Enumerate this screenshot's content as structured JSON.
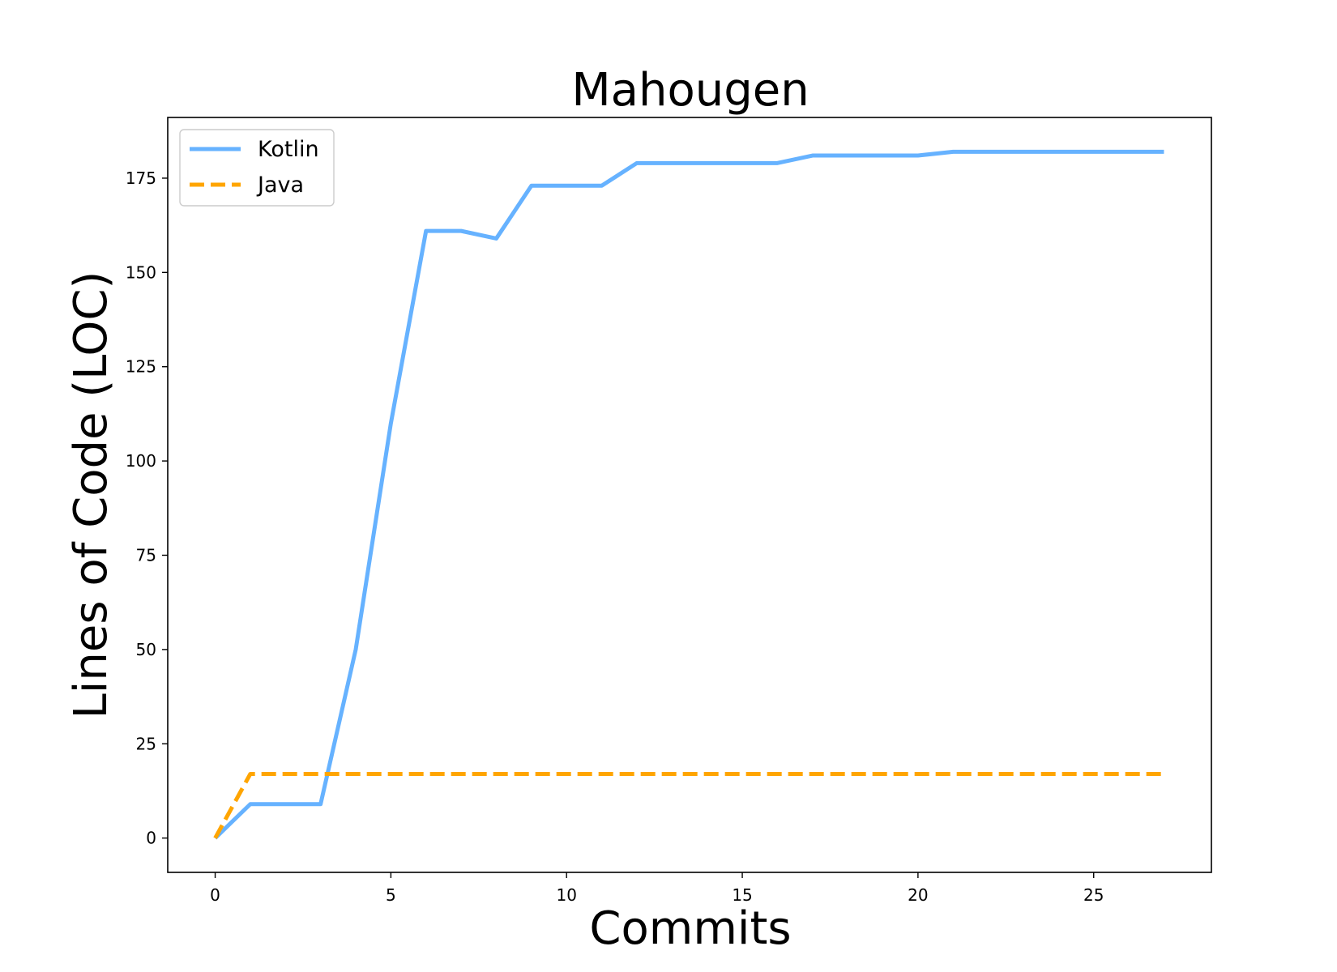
{
  "chart_data": {
    "type": "line",
    "title": "Mahougen",
    "xlabel": "Commits",
    "ylabel": "Lines of Code (LOC)",
    "xlim": [
      -1.35,
      28.35
    ],
    "ylim": [
      -9.1,
      191.1
    ],
    "xticks": [
      0,
      5,
      10,
      15,
      20,
      25
    ],
    "yticks": [
      0,
      25,
      50,
      75,
      100,
      125,
      150,
      175
    ],
    "grid": false,
    "legend_position": "top-left",
    "series": [
      {
        "name": "Kotlin",
        "color": "#66b2ff",
        "dash": "solid",
        "x": [
          0,
          1,
          2,
          3,
          4,
          5,
          6,
          7,
          8,
          9,
          10,
          11,
          12,
          13,
          14,
          15,
          16,
          17,
          18,
          19,
          20,
          21,
          22,
          23,
          24,
          25,
          26,
          27
        ],
        "values": [
          0,
          9,
          9,
          9,
          50,
          110,
          161,
          161,
          159,
          173,
          173,
          173,
          179,
          179,
          179,
          179,
          179,
          181,
          181,
          181,
          181,
          182,
          182,
          182,
          182,
          182,
          182,
          182
        ]
      },
      {
        "name": "Java",
        "color": "#ffa500",
        "dash": "dashed",
        "x": [
          0,
          1,
          2,
          3,
          4,
          5,
          6,
          7,
          8,
          9,
          10,
          11,
          12,
          13,
          14,
          15,
          16,
          17,
          18,
          19,
          20,
          21,
          22,
          23,
          24,
          25,
          26,
          27
        ],
        "values": [
          0,
          17,
          17,
          17,
          17,
          17,
          17,
          17,
          17,
          17,
          17,
          17,
          17,
          17,
          17,
          17,
          17,
          17,
          17,
          17,
          17,
          17,
          17,
          17,
          17,
          17,
          17,
          17
        ]
      }
    ]
  }
}
